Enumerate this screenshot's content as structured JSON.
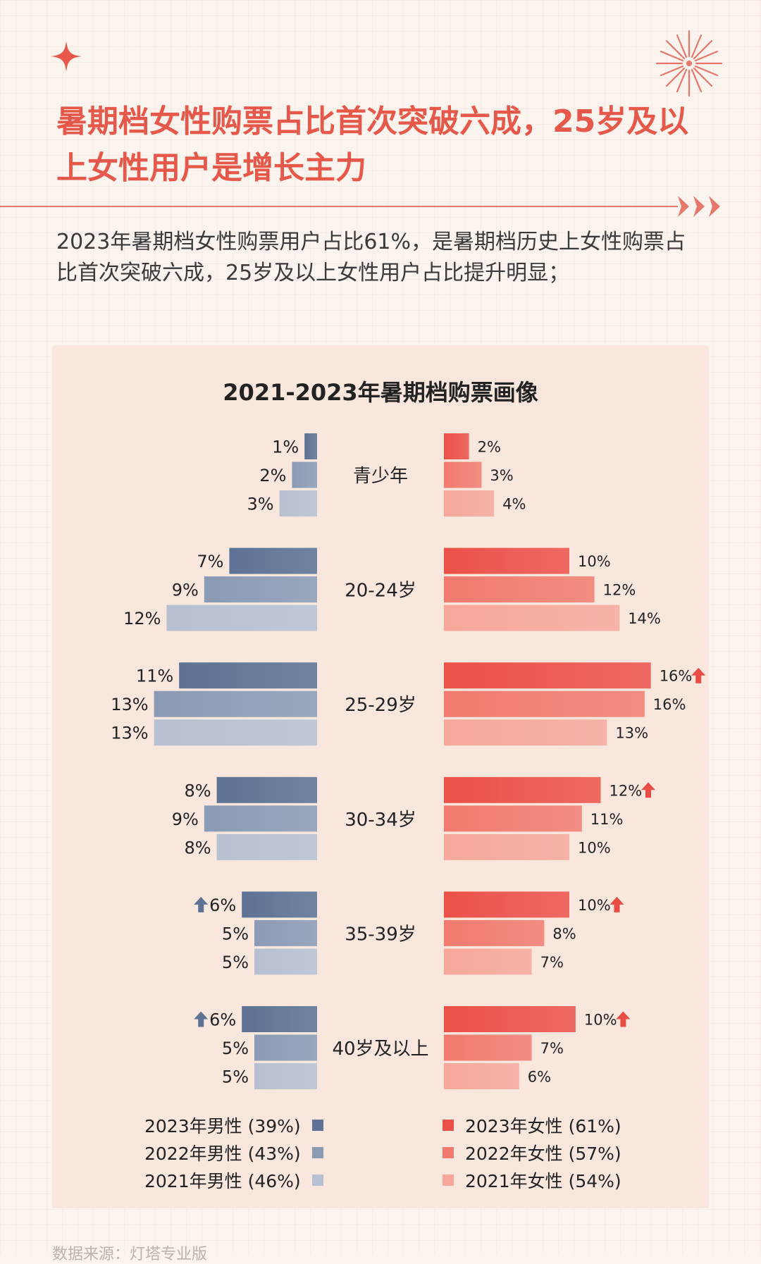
{
  "header": {
    "title": "暑期档女性购票占比首次突破六成，25岁及以上女性用户是增长主力",
    "subtitle": "2023年暑期档女性购票用户占比61%，是暑期档历史上女性购票占比首次突破六成，25岁及以上女性用户占比提升明显；"
  },
  "footer": {
    "source": "数据来源：灯塔专业版"
  },
  "colors": {
    "accent": "#e5584a",
    "male": [
      "#5d7294",
      "#8b9bb5",
      "#b6c0d1"
    ],
    "female": [
      "#eb5148",
      "#f17a6e",
      "#f6a79a"
    ],
    "arrow_male": "#5d7294",
    "arrow_female": "#e94c43"
  },
  "chart_data": {
    "type": "bar",
    "title": "2021-2023年暑期档购票画像",
    "categories": [
      "青少年",
      "20-24岁",
      "25-29岁",
      "30-34岁",
      "35-39岁",
      "40岁及以上"
    ],
    "series": [
      {
        "name": "2023年男性 (39%)",
        "side": "male",
        "values": [
          1,
          7,
          11,
          8,
          6,
          6
        ],
        "labels": [
          "1%",
          "7%",
          "11%",
          "8%",
          "6%",
          "6%"
        ],
        "up": [
          false,
          false,
          false,
          false,
          true,
          true
        ]
      },
      {
        "name": "2022年男性 (43%)",
        "side": "male",
        "values": [
          2,
          9,
          13,
          9,
          5,
          5
        ],
        "labels": [
          "2%",
          "9%",
          "13%",
          "9%",
          "5%",
          "5%"
        ],
        "up": [
          false,
          false,
          false,
          false,
          false,
          false
        ]
      },
      {
        "name": "2021年男性 (46%)",
        "side": "male",
        "values": [
          3,
          12,
          13,
          8,
          5,
          5
        ],
        "labels": [
          "3%",
          "12%",
          "13%",
          "8%",
          "5%",
          "5%"
        ],
        "up": [
          false,
          false,
          false,
          false,
          false,
          false
        ]
      },
      {
        "name": "2023年女性 (61%)",
        "side": "female",
        "values": [
          2,
          10,
          16.5,
          12.5,
          10,
          10.5
        ],
        "labels": [
          "2%",
          "10%",
          "16%",
          "12%",
          "10%",
          "10%"
        ],
        "up": [
          false,
          false,
          true,
          true,
          true,
          true
        ]
      },
      {
        "name": "2022年女性 (57%)",
        "side": "female",
        "values": [
          3,
          12,
          16,
          11,
          8,
          7
        ],
        "labels": [
          "3%",
          "12%",
          "16%",
          "11%",
          "8%",
          "7%"
        ],
        "up": [
          false,
          false,
          false,
          false,
          false,
          false
        ]
      },
      {
        "name": "2021年女性 (54%)",
        "side": "female",
        "values": [
          4,
          14,
          13,
          10,
          7,
          6
        ],
        "labels": [
          "4%",
          "14%",
          "13%",
          "10%",
          "7%",
          "6%"
        ],
        "up": [
          false,
          false,
          false,
          false,
          false,
          false
        ]
      }
    ],
    "legend": "bottom",
    "grid": false
  }
}
